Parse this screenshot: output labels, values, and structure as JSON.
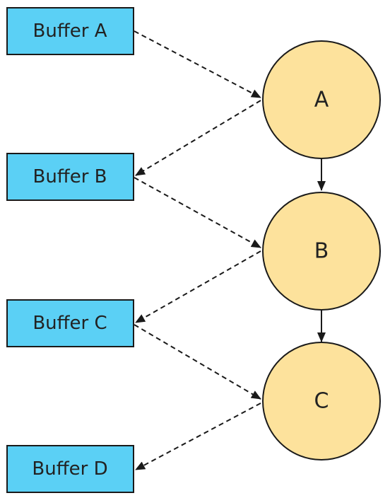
{
  "colors": {
    "buffer_fill": "#5bd0f5",
    "node_fill": "#fde29c",
    "stroke": "#1a1a1a"
  },
  "buffers": [
    {
      "id": "buffer-a",
      "label": "Buffer A"
    },
    {
      "id": "buffer-b",
      "label": "Buffer B"
    },
    {
      "id": "buffer-c",
      "label": "Buffer C"
    },
    {
      "id": "buffer-d",
      "label": "Buffer D"
    }
  ],
  "nodes": [
    {
      "id": "node-a",
      "label": "A"
    },
    {
      "id": "node-b",
      "label": "B"
    },
    {
      "id": "node-c",
      "label": "C"
    }
  ],
  "edges": [
    {
      "from": "buffer-a",
      "to": "node-a",
      "style": "dashed"
    },
    {
      "from": "node-a",
      "to": "buffer-b",
      "style": "dashed"
    },
    {
      "from": "buffer-b",
      "to": "node-b",
      "style": "dashed"
    },
    {
      "from": "node-b",
      "to": "buffer-c",
      "style": "dashed"
    },
    {
      "from": "buffer-c",
      "to": "node-c",
      "style": "dashed"
    },
    {
      "from": "node-c",
      "to": "buffer-d",
      "style": "dashed"
    },
    {
      "from": "node-a",
      "to": "node-b",
      "style": "solid"
    },
    {
      "from": "node-b",
      "to": "node-c",
      "style": "solid"
    }
  ]
}
